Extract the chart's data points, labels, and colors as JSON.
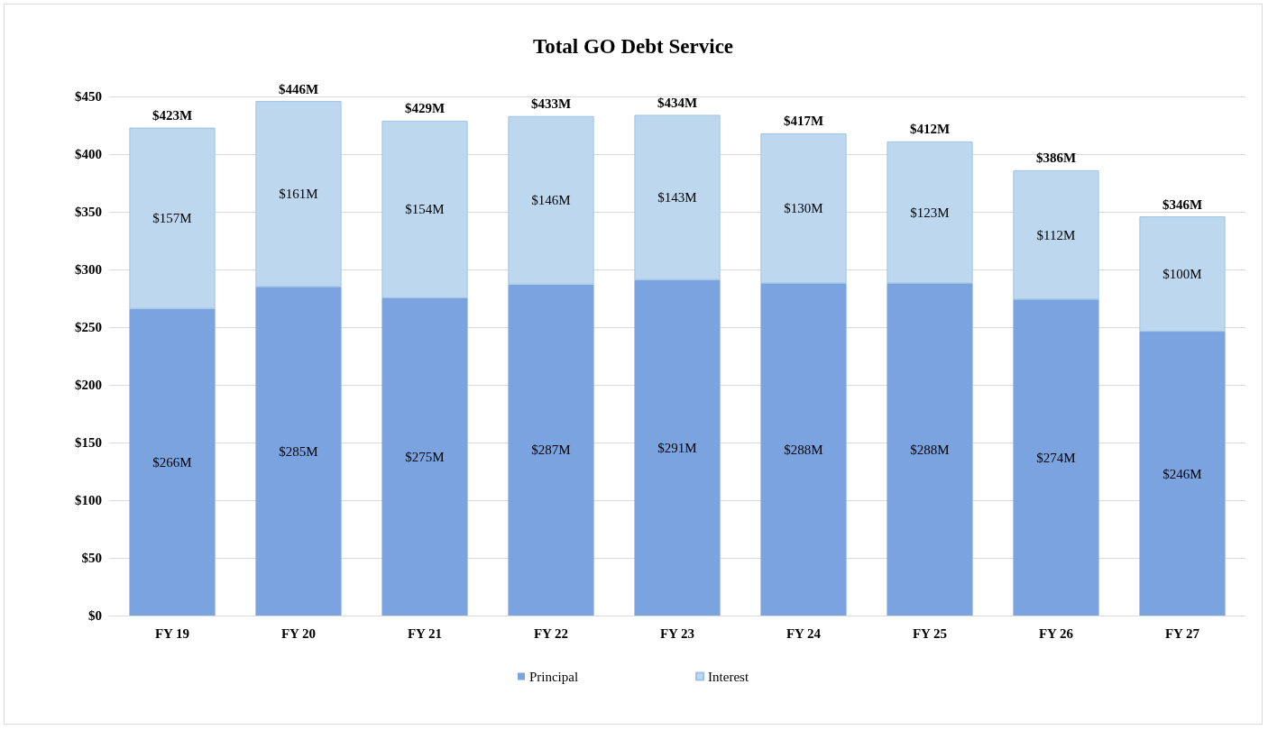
{
  "chart_data": {
    "type": "bar",
    "title": "Total GO Debt Service",
    "stacked": true,
    "categories": [
      "FY 19",
      "FY 20",
      "FY 21",
      "FY 22",
      "FY 23",
      "FY 24",
      "FY 25",
      "FY 26",
      "FY 27"
    ],
    "series": [
      {
        "name": "Principal",
        "color": "#7ba3df",
        "values": [
          266,
          285,
          275,
          287,
          291,
          288,
          288,
          274,
          246
        ],
        "value_labels": [
          "$266M",
          "$285M",
          "$275M",
          "$287M",
          "$291M",
          "$288M",
          "$288M",
          "$274M",
          "$246M"
        ]
      },
      {
        "name": "Interest",
        "color": "#bdd7ee",
        "values": [
          157,
          161,
          154,
          146,
          143,
          130,
          123,
          112,
          100
        ],
        "value_labels": [
          "$157M",
          "$161M",
          "$154M",
          "$146M",
          "$143M",
          "$130M",
          "$123M",
          "$112M",
          "$100M"
        ]
      }
    ],
    "totals": [
      "$423M",
      "$446M",
      "$429M",
      "$433M",
      "$434M",
      "$417M",
      "$412M",
      "$386M",
      "$346M"
    ],
    "ylim": [
      0,
      450
    ],
    "yticks": [
      {
        "value": 0,
        "label": "$0"
      },
      {
        "value": 50,
        "label": "$50"
      },
      {
        "value": 100,
        "label": "$100"
      },
      {
        "value": 150,
        "label": "$150"
      },
      {
        "value": 200,
        "label": "$200"
      },
      {
        "value": 250,
        "label": "$250"
      },
      {
        "value": 300,
        "label": "$300"
      },
      {
        "value": 350,
        "label": "$350"
      },
      {
        "value": 400,
        "label": "$400"
      },
      {
        "value": 450,
        "label": "$450"
      }
    ],
    "grid": "y",
    "legend": "bottom"
  }
}
